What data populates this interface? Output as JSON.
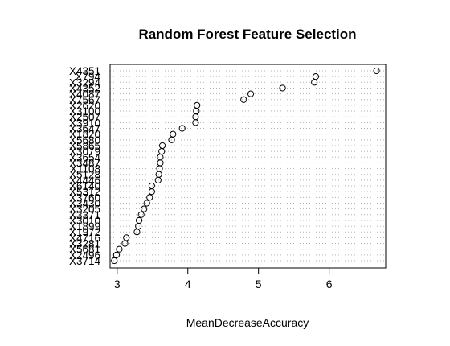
{
  "chart_data": {
    "type": "scatter",
    "title": "Random Forest Feature Selection",
    "xlabel": "MeanDecreaseAccuracy",
    "ylabel": "",
    "xlim": [
      2.9,
      6.8
    ],
    "xticks": [
      3,
      4,
      5,
      6
    ],
    "grid": "dotted horizontal guides",
    "legend": "none",
    "colors": {
      "points": "#000000",
      "guides": "#b0b0b0",
      "frame": "#000000"
    },
    "categories": [
      "X4351",
      "X794",
      "X3294",
      "X4352",
      "X4087",
      "X7567",
      "X2620",
      "X3100",
      "X2507",
      "X3910",
      "X3647",
      "X1820",
      "X5680",
      "X5865",
      "X3079",
      "X3654",
      "X3487",
      "X1108",
      "X5128",
      "X4446",
      "X6140",
      "X5312",
      "X3760",
      "X3430",
      "X3205",
      "X3371",
      "X3010",
      "X1899",
      "X1972",
      "X4716",
      "X3281",
      "X5681",
      "X2496",
      "X3714"
    ],
    "values": [
      6.67,
      5.81,
      5.79,
      5.34,
      4.89,
      4.79,
      4.13,
      4.12,
      4.11,
      4.11,
      3.92,
      3.79,
      3.77,
      3.64,
      3.63,
      3.61,
      3.61,
      3.6,
      3.59,
      3.58,
      3.49,
      3.49,
      3.46,
      3.42,
      3.38,
      3.34,
      3.31,
      3.3,
      3.28,
      3.13,
      3.11,
      3.03,
      2.99,
      2.96
    ]
  }
}
